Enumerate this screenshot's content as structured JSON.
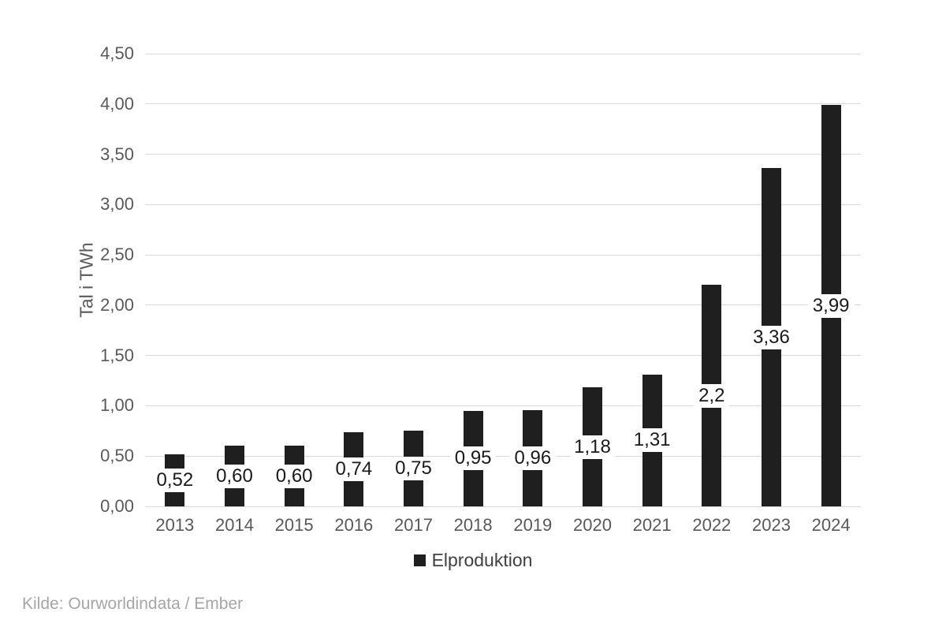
{
  "chart_data": {
    "type": "bar",
    "title": "",
    "ylabel": "Tal i TWh",
    "categories": [
      "2013",
      "2014",
      "2015",
      "2016",
      "2017",
      "2018",
      "2019",
      "2020",
      "2021",
      "2022",
      "2023",
      "2024"
    ],
    "series": [
      {
        "name": "Elproduktion",
        "values": [
          0.52,
          0.6,
          0.6,
          0.74,
          0.75,
          0.95,
          0.96,
          1.18,
          1.31,
          2.2,
          3.36,
          3.99
        ]
      }
    ],
    "value_labels": [
      "0,52",
      "0,60",
      "0,60",
      "0,74",
      "0,75",
      "0,95",
      "0,96",
      "1,18",
      "1,31",
      "2,2",
      "3,36",
      "3,99"
    ],
    "y_ticks": [
      "0,00",
      "0,50",
      "1,00",
      "1,50",
      "2,00",
      "2,50",
      "3,00",
      "3,50",
      "4,00",
      "4,50"
    ],
    "ylim": [
      0,
      4.5
    ],
    "y_tick_step": 0.5,
    "grid": true,
    "legend_position": "bottom"
  },
  "legend": {
    "marker": "black-square",
    "label": "Elproduktion"
  },
  "footer": {
    "source_text": "Kilde: Ourworldindata / Ember"
  },
  "colors": {
    "bar": "#1f1f1f",
    "gridline": "#d9d9d9",
    "axis_text": "#595959",
    "data_label_text": "#1a1a1a",
    "legend_text": "#404040",
    "source_text": "#a6a6a6",
    "background": "#ffffff"
  }
}
